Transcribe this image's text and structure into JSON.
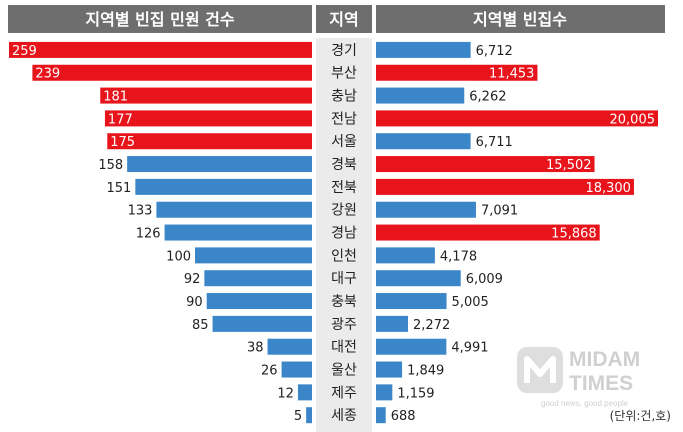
{
  "chart_data": {
    "type": "bar",
    "headers": {
      "left": "지역별 빈집 민원 건수",
      "center": "지역",
      "right": "지역별 빈집수"
    },
    "categories": [
      "경기",
      "부산",
      "충남",
      "전남",
      "서울",
      "경북",
      "전북",
      "강원",
      "경남",
      "인천",
      "대구",
      "충북",
      "광주",
      "대전",
      "울산",
      "제주",
      "세종"
    ],
    "series": [
      {
        "name": "지역별 빈집 민원 건수",
        "values": [
          259,
          239,
          181,
          177,
          175,
          158,
          151,
          133,
          126,
          100,
          92,
          90,
          85,
          38,
          26,
          12,
          5
        ],
        "highlight": [
          true,
          true,
          true,
          true,
          true,
          false,
          false,
          false,
          false,
          false,
          false,
          false,
          false,
          false,
          false,
          false,
          false
        ]
      },
      {
        "name": "지역별 빈집수",
        "values": [
          6712,
          11453,
          6262,
          20005,
          6711,
          15502,
          18300,
          7091,
          15868,
          4178,
          6009,
          5005,
          2272,
          4991,
          1849,
          1159,
          688
        ],
        "highlight": [
          false,
          true,
          false,
          true,
          false,
          true,
          true,
          false,
          true,
          false,
          false,
          false,
          false,
          false,
          false,
          false,
          false
        ]
      }
    ],
    "unit_note": "(단위:건,호)",
    "colors": {
      "highlight": "#e8141c",
      "normal": "#3a86c8",
      "header": "#6e6e6e",
      "center_band": "#ebebeb"
    }
  },
  "watermark": {
    "brand_top": "MIDAM",
    "brand_bottom": "TIMES",
    "tagline": "good news, good people"
  }
}
